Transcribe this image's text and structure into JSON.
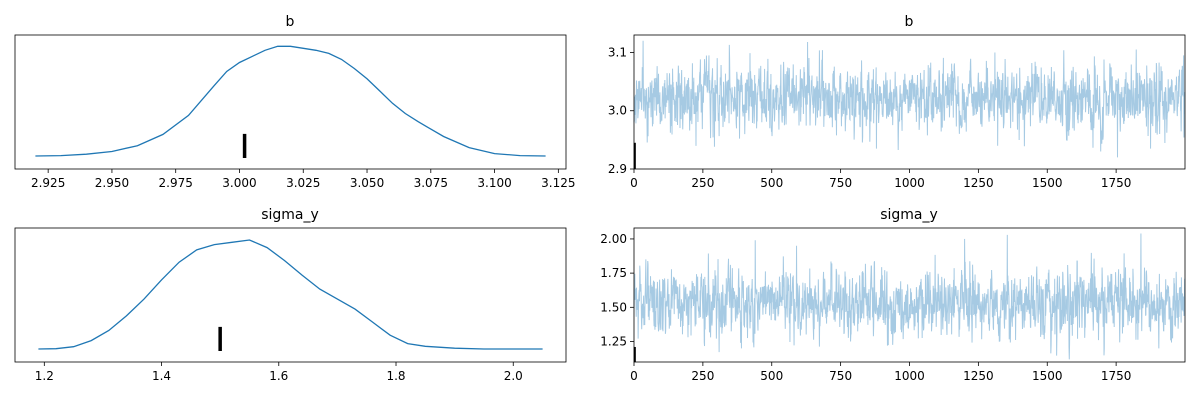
{
  "chart_data": [
    {
      "type": "line",
      "title": "b",
      "xlabel": "",
      "ylabel": "",
      "xlim": [
        2.912,
        3.128
      ],
      "ylim": [
        0,
        1.04
      ],
      "y_ticks_shown": false,
      "x_ticks": [
        2.925,
        2.95,
        2.975,
        3.0,
        3.025,
        3.05,
        3.075,
        3.1,
        3.125
      ],
      "x_tick_labels": [
        "2.925",
        "2.950",
        "2.975",
        "3.000",
        "3.025",
        "3.050",
        "3.075",
        "3.100",
        "3.125"
      ],
      "series": [
        {
          "x": [
            2.92,
            2.93,
            2.94,
            2.95,
            2.96,
            2.97,
            2.98,
            2.99,
            2.995,
            3.0,
            3.005,
            3.01,
            3.015,
            3.02,
            3.025,
            3.03,
            3.035,
            3.04,
            3.045,
            3.05,
            3.055,
            3.06,
            3.065,
            3.07,
            3.075,
            3.08,
            3.09,
            3.1,
            3.11,
            3.12
          ],
          "y": [
            0.0,
            0.004,
            0.016,
            0.041,
            0.093,
            0.195,
            0.367,
            0.635,
            0.764,
            0.846,
            0.901,
            0.956,
            0.992,
            0.992,
            0.974,
            0.956,
            0.928,
            0.874,
            0.791,
            0.698,
            0.588,
            0.477,
            0.384,
            0.311,
            0.243,
            0.176,
            0.076,
            0.022,
            0.004,
            0.0
          ]
        }
      ],
      "rug": [
        {
          "x": 3.002,
          "height": 0.2
        }
      ],
      "color": "#1f77b4",
      "rug_color": "#000000"
    },
    {
      "type": "line",
      "title": "b",
      "xlabel": "",
      "ylabel": "",
      "xlim": [
        0,
        2000
      ],
      "ylim": [
        2.9,
        3.13
      ],
      "x_ticks": [
        0,
        250,
        500,
        750,
        1000,
        1250,
        1500,
        1750
      ],
      "x_tick_labels": [
        "0",
        "250",
        "500",
        "750",
        "1000",
        "1250",
        "1500",
        "1750"
      ],
      "y_ticks": [
        2.9,
        3.0,
        3.1
      ],
      "y_tick_labels": [
        "2.9",
        "3.0",
        "3.1"
      ],
      "series": [
        {
          "n_draws": 2000,
          "mean": 3.02,
          "sd": 0.028,
          "extremes": [
            {
              "x": 630,
              "y": 3.118
            },
            {
              "x": 1310,
              "y": 3.1
            },
            {
              "x": 1755,
              "y": 2.92
            },
            {
              "x": 1995,
              "y": 3.095
            },
            {
              "x": 880,
              "y": 2.935
            },
            {
              "x": 1320,
              "y": 2.94
            },
            {
              "x": 1875,
              "y": 2.935
            }
          ]
        }
      ],
      "rug": [
        {
          "x": 3,
          "y_from": 2.9,
          "y_to": 2.945
        }
      ],
      "color": "#a6cae3",
      "rug_color": "#000000"
    },
    {
      "type": "line",
      "title": "sigma_y",
      "xlabel": "",
      "ylabel": "",
      "xlim": [
        1.15,
        2.09
      ],
      "ylim": [
        0,
        1.04
      ],
      "y_ticks_shown": false,
      "x_ticks": [
        1.2,
        1.4,
        1.6,
        1.8,
        2.0
      ],
      "x_tick_labels": [
        "1.2",
        "1.4",
        "1.6",
        "1.8",
        "2.0"
      ],
      "series": [
        {
          "x": [
            1.19,
            1.22,
            1.25,
            1.28,
            1.31,
            1.34,
            1.37,
            1.4,
            1.43,
            1.46,
            1.49,
            1.52,
            1.55,
            1.58,
            1.61,
            1.64,
            1.67,
            1.7,
            1.73,
            1.76,
            1.79,
            1.82,
            1.85,
            1.9,
            1.95,
            2.0,
            2.05
          ],
          "y": [
            0.0,
            0.003,
            0.021,
            0.076,
            0.167,
            0.299,
            0.451,
            0.625,
            0.785,
            0.896,
            0.944,
            0.965,
            0.986,
            0.917,
            0.799,
            0.667,
            0.542,
            0.451,
            0.361,
            0.243,
            0.125,
            0.049,
            0.024,
            0.007,
            0.0,
            0.0,
            0.0
          ]
        }
      ],
      "rug": [
        {
          "x": 1.5,
          "height": 0.2
        }
      ],
      "color": "#1f77b4",
      "rug_color": "#000000"
    },
    {
      "type": "line",
      "title": "sigma_y",
      "xlabel": "",
      "ylabel": "",
      "xlim": [
        0,
        2000
      ],
      "ylim": [
        1.1,
        2.08
      ],
      "x_ticks": [
        0,
        250,
        500,
        750,
        1000,
        1250,
        1500,
        1750
      ],
      "x_tick_labels": [
        "0",
        "250",
        "500",
        "750",
        "1000",
        "1250",
        "1500",
        "1750"
      ],
      "y_ticks": [
        1.25,
        1.5,
        1.75,
        2.0
      ],
      "y_tick_labels": [
        "1.25",
        "1.50",
        "1.75",
        "2.00"
      ],
      "series": [
        {
          "n_draws": 2000,
          "mean": 1.53,
          "sd": 0.12,
          "extremes": [
            {
              "x": 440,
              "y": 1.99
            },
            {
              "x": 590,
              "y": 1.95
            },
            {
              "x": 1200,
              "y": 2.0
            },
            {
              "x": 1355,
              "y": 2.03
            },
            {
              "x": 1840,
              "y": 2.04
            },
            {
              "x": 390,
              "y": 1.2
            },
            {
              "x": 920,
              "y": 1.22
            },
            {
              "x": 1610,
              "y": 1.27
            }
          ]
        }
      ],
      "rug": [
        {
          "x": 3,
          "y_from": 1.1,
          "y_to": 1.21
        }
      ],
      "color": "#a6cae3",
      "rug_color": "#000000"
    }
  ]
}
